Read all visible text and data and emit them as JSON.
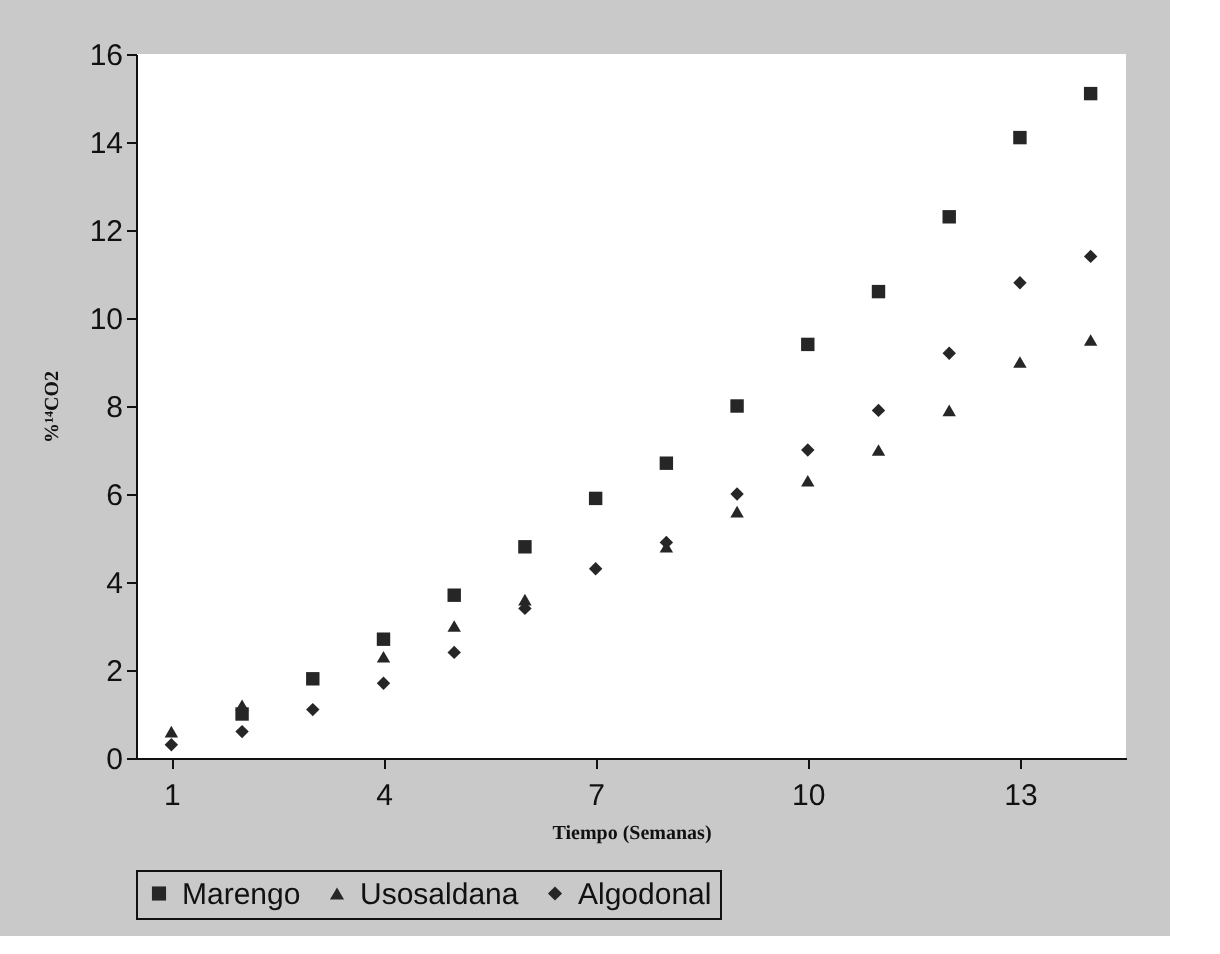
{
  "chart_data": {
    "type": "scatter",
    "xlabel": "Tiempo (Semanas)",
    "ylabel": "%¹⁴CO2",
    "x": [
      1,
      2,
      3,
      4,
      5,
      6,
      7,
      8,
      9,
      10,
      11,
      12,
      13,
      14
    ],
    "xlim": [
      0.5,
      14.5
    ],
    "xticks": [
      1,
      4,
      7,
      10,
      13
    ],
    "ylim": [
      0,
      16
    ],
    "yticks": [
      0,
      2,
      4,
      6,
      8,
      10,
      12,
      14,
      16
    ],
    "grid": false,
    "legend": "bottom",
    "series": [
      {
        "name": "Marengo",
        "color": "#262626",
        "marker": "square",
        "values": [
          null,
          1.0,
          1.8,
          2.7,
          3.7,
          4.8,
          5.9,
          6.7,
          8.0,
          9.4,
          10.6,
          12.3,
          14.1,
          15.1
        ]
      },
      {
        "name": "Usosaldana",
        "color": "#262626",
        "marker": "triangle",
        "values": [
          0.6,
          1.2,
          null,
          2.3,
          3.0,
          3.6,
          null,
          4.8,
          5.6,
          6.3,
          7.0,
          7.9,
          9.0,
          9.5
        ]
      },
      {
        "name": "Algodonal",
        "color": "#262626",
        "marker": "diamond",
        "values": [
          0.3,
          0.6,
          1.1,
          1.7,
          2.4,
          3.4,
          4.3,
          4.9,
          6.0,
          7.0,
          7.9,
          9.2,
          10.8,
          11.4
        ]
      }
    ]
  }
}
